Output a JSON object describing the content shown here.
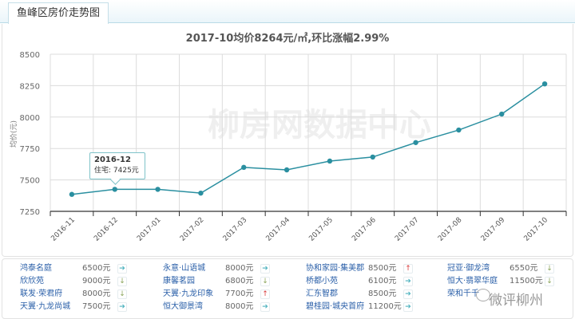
{
  "header": {
    "tab_label": "鱼峰区房价走势图"
  },
  "chart_data": {
    "type": "line",
    "title": "2017-10均价8264元/㎡,环比涨幅2.99%",
    "xlabel": "",
    "ylabel": "均价(元)",
    "ylim": [
      7250,
      8500
    ],
    "yticks": [
      7250,
      7500,
      7750,
      8000,
      8250,
      8500
    ],
    "grid": true,
    "categories": [
      "2016-11",
      "2016-12",
      "2017-01",
      "2017-02",
      "2017-03",
      "2017-04",
      "2017-05",
      "2017-06",
      "2017-07",
      "2017-08",
      "2017-09",
      "2017-10"
    ],
    "series": [
      {
        "name": "住宅",
        "color": "#2a8fa0",
        "values": [
          7385,
          7425,
          7425,
          7395,
          7600,
          7580,
          7650,
          7682,
          7797,
          7897,
          8024,
          8264
        ]
      }
    ],
    "watermark": "柳房网数据中心",
    "tooltip": {
      "title": "2016-12",
      "text": "住宅: 7425元"
    }
  },
  "listings": [
    {
      "name": "鸿泰名庭",
      "price": "6500元",
      "trend": "flat"
    },
    {
      "name": "欣欣苑",
      "price": "9000元",
      "trend": "down"
    },
    {
      "name": "联发·荣君府",
      "price": "8000元",
      "trend": "down"
    },
    {
      "name": "天翼·九龙尚城",
      "price": "7500元",
      "trend": "flat"
    },
    {
      "name": "永意·山语城",
      "price": "8000元",
      "trend": "flat"
    },
    {
      "name": "康馨茗园",
      "price": "6800元",
      "trend": "down"
    },
    {
      "name": "天翼·九龙印象",
      "price": "7700元",
      "trend": "up"
    },
    {
      "name": "恒大御景湾",
      "price": "8000元",
      "trend": "flat"
    },
    {
      "name": "协和家园·集美郡",
      "price": "8500元",
      "trend": "up"
    },
    {
      "name": "桥都小苑",
      "price": "6100元",
      "trend": "flat"
    },
    {
      "name": "汇东智郡",
      "price": "8500元",
      "trend": "flat"
    },
    {
      "name": "碧桂园·城央首府",
      "price": "11200元",
      "trend": "flat"
    },
    {
      "name": "冠亚·御龙湾",
      "price": "6550元",
      "trend": "down"
    },
    {
      "name": "恒大·翡翠华庭",
      "price": "11500元",
      "trend": "down"
    },
    {
      "name": "荣和千千",
      "price": "",
      "trend": ""
    }
  ],
  "overlay_watermark": "微评柳州",
  "colors": {
    "line": "#2a8fa0",
    "link": "#2a5fa8",
    "up": "#d83a3a",
    "down": "#8aa55a",
    "flat": "#4fb3bf"
  }
}
